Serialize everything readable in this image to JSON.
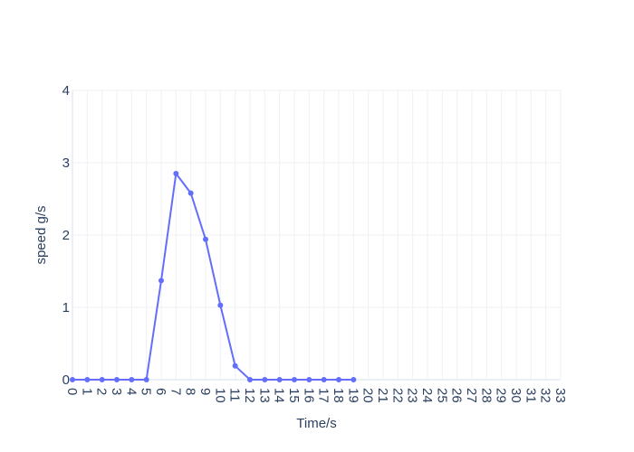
{
  "chart_data": {
    "type": "line",
    "title": "",
    "xlabel": "Time/s",
    "ylabel": "speed g/s",
    "xlim": [
      0,
      33
    ],
    "ylim": [
      0,
      4
    ],
    "x_ticks": [
      0,
      1,
      2,
      3,
      4,
      5,
      6,
      7,
      8,
      9,
      10,
      11,
      12,
      13,
      14,
      15,
      16,
      17,
      18,
      19,
      20,
      21,
      22,
      23,
      24,
      25,
      26,
      27,
      28,
      29,
      30,
      31,
      32,
      33
    ],
    "y_ticks": [
      0,
      1,
      2,
      3,
      4
    ],
    "grid": true,
    "legend": "none",
    "series": [
      {
        "color": "#636efa",
        "x": [
          0,
          1,
          2,
          3,
          4,
          5,
          6,
          7,
          8,
          9,
          10,
          11,
          12,
          13,
          14,
          15,
          16,
          17,
          18,
          19
        ],
        "y": [
          0,
          0,
          0,
          0,
          0,
          0,
          1.37,
          2.85,
          2.58,
          1.94,
          1.03,
          0.19,
          0,
          0,
          0,
          0,
          0,
          0,
          0,
          0
        ]
      }
    ]
  }
}
